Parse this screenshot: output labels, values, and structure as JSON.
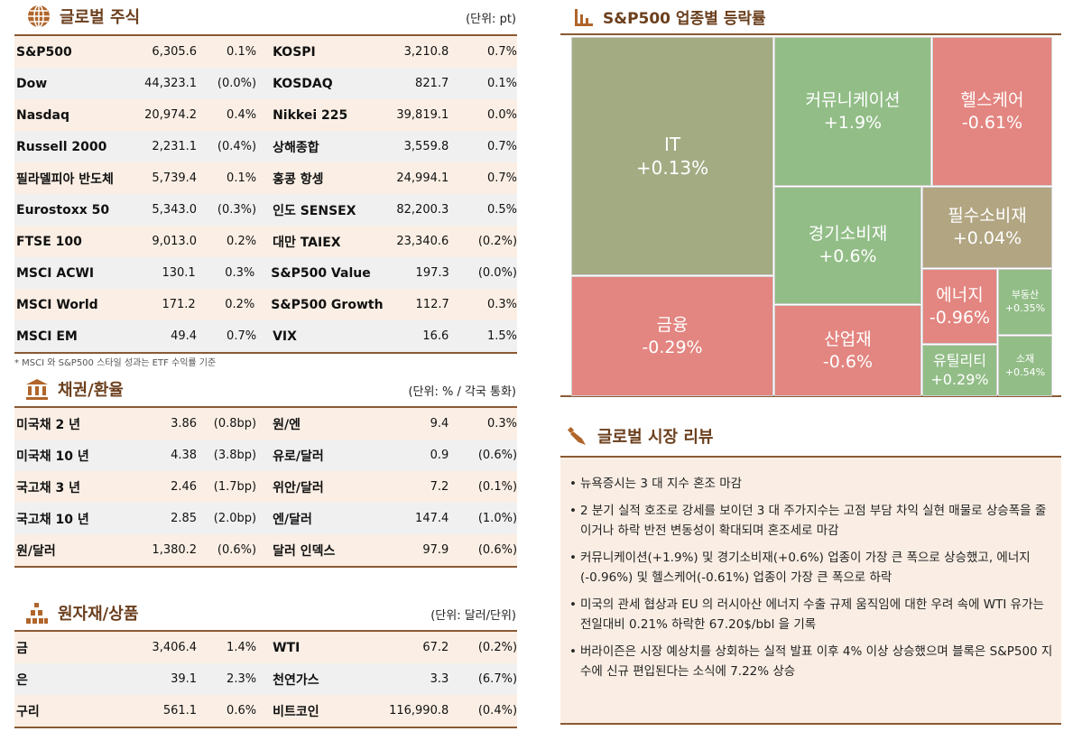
{
  "stocks": {
    "title": "글로벌 주식",
    "unit": "(단위: pt)",
    "icon": "globe-icon",
    "rows": [
      [
        "S&P500",
        "6,305.6",
        "0.1%",
        "KOSPI",
        "3,210.8",
        "0.7%"
      ],
      [
        "Dow",
        "44,323.1",
        "(0.0%)",
        "KOSDAQ",
        "821.7",
        "0.1%"
      ],
      [
        "Nasdaq",
        "20,974.2",
        "0.4%",
        "Nikkei 225",
        "39,819.1",
        "0.0%"
      ],
      [
        "Russell 2000",
        "2,231.1",
        "(0.4%)",
        "상해종합",
        "3,559.8",
        "0.7%"
      ],
      [
        "필라델피아 반도체",
        "5,739.4",
        "0.1%",
        "홍콩 항셍",
        "24,994.1",
        "0.7%"
      ],
      [
        "Eurostoxx 50",
        "5,343.0",
        "(0.3%)",
        "인도 SENSEX",
        "82,200.3",
        "0.5%"
      ],
      [
        "FTSE 100",
        "9,013.0",
        "0.2%",
        "대만 TAIEX",
        "23,340.6",
        "(0.2%)"
      ],
      [
        "MSCI ACWI",
        "130.1",
        "0.3%",
        "S&P500 Value",
        "197.3",
        "(0.0%)"
      ],
      [
        "MSCI World",
        "171.2",
        "0.2%",
        "S&P500 Growth",
        "112.7",
        "0.3%"
      ],
      [
        "MSCI EM",
        "49.4",
        "0.7%",
        "VIX",
        "16.6",
        "1.5%"
      ]
    ],
    "footnote": "* MSCI 와 S&P500 스타일 성과는 ETF 수익률 기준"
  },
  "bonds": {
    "title": "채권/환율",
    "unit": "(단위: % / 각국 통화)",
    "icon": "bank-icon",
    "rows": [
      [
        "미국채 2 년",
        "3.86",
        "(0.8bp)",
        "원/엔",
        "9.4",
        "0.3%"
      ],
      [
        "미국채 10 년",
        "4.38",
        "(3.8bp)",
        "유로/달러",
        "0.9",
        "(0.6%)"
      ],
      [
        "국고채 3 년",
        "2.46",
        "(1.7bp)",
        "위안/달러",
        "7.2",
        "(0.1%)"
      ],
      [
        "국고채 10 년",
        "2.85",
        "(2.0bp)",
        "엔/달러",
        "147.4",
        "(1.0%)"
      ],
      [
        "원/달러",
        "1,380.2",
        "(0.6%)",
        "달러 인덱스",
        "97.9",
        "(0.6%)"
      ]
    ]
  },
  "commodities": {
    "title": "원자재/상품",
    "unit": "(단위: 달러/단위)",
    "icon": "gold-bars-icon",
    "rows": [
      [
        "금",
        "3,406.4",
        "1.4%",
        "WTI",
        "67.2",
        "(0.2%)"
      ],
      [
        "은",
        "39.1",
        "2.3%",
        "천연가스",
        "3.3",
        "(6.7%)"
      ],
      [
        "구리",
        "561.1",
        "0.6%",
        "비트코인",
        "116,990.8",
        "(0.4%)"
      ]
    ]
  },
  "treemap": {
    "title": "S&P500 업종별 등락률",
    "icon": "bar-chart-icon",
    "tiles": [
      {
        "label": "IT",
        "value": "+0.13%",
        "color": "#a3ab83"
      },
      {
        "label": "커뮤니케이션",
        "value": "+1.9%",
        "color": "#92bd87"
      },
      {
        "label": "헬스케어",
        "value": "-0.61%",
        "color": "#e38580"
      },
      {
        "label": "금융",
        "value": "-0.29%",
        "color": "#e38580"
      },
      {
        "label": "경기소비재",
        "value": "+0.6%",
        "color": "#92bd87"
      },
      {
        "label": "필수소비재",
        "value": "+0.04%",
        "color": "#b1a582"
      },
      {
        "label": "산업재",
        "value": "-0.6%",
        "color": "#e38580"
      },
      {
        "label": "에너지",
        "value": "-0.96%",
        "color": "#e38580"
      },
      {
        "label": "부동산",
        "value": "+0.35%",
        "color": "#92bd87"
      },
      {
        "label": "유틸리티",
        "value": "+0.29%",
        "color": "#92bd87"
      },
      {
        "label": "소재",
        "value": "+0.54%",
        "color": "#92bd87"
      }
    ]
  },
  "review": {
    "title": "글로벌 시장 리뷰",
    "icon": "pen-icon",
    "items": [
      "뉴욕증시는 3 대 지수 혼조 마감",
      "2 분기 실적 호조로 강세를 보이던 3 대 주가지수는 고점 부담 차익 실현 매물로 상승폭을 줄이거나 하락 반전 변동성이 확대되며 혼조세로 마감",
      "커뮤니케이션(+1.9%) 및 경기소비재(+0.6%) 업종이 가장 큰 폭으로 상승했고, 에너지(-0.96%) 및 헬스케어(-0.61%) 업종이 가장 큰 폭으로 하락",
      "미국의 관세 협상과 EU 의 러시아산 에너지 수출 규제 움직임에 대한 우려 속에 WTI 유가는 전일대비 0.21% 하락한 67.20$/bbl 을 기록",
      "버라이즌은 시장 예상치를 상회하는 실적 발표 이후 4% 이상 상승했으며 블록은 S&P500 지수에 신규 편입된다는 소식에 7.22% 상승"
    ]
  }
}
